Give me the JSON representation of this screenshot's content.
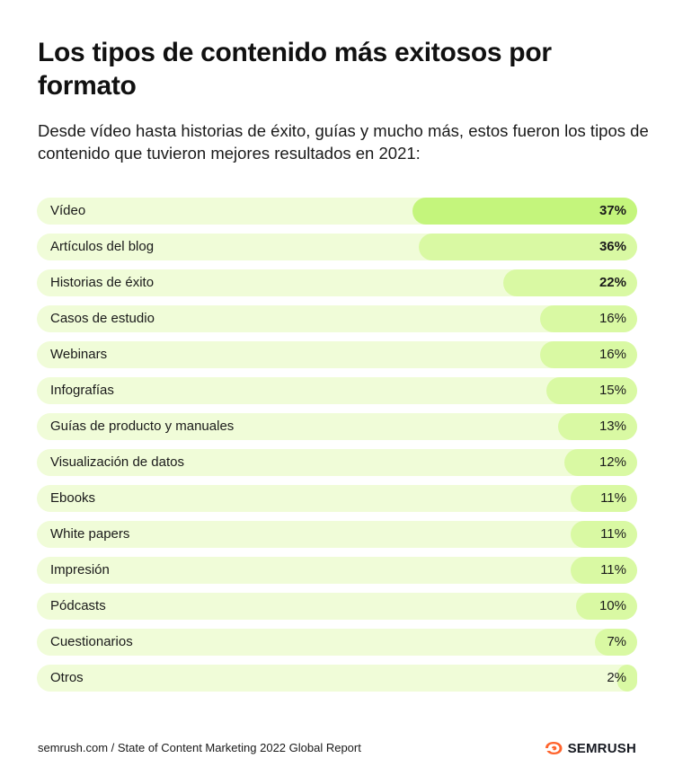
{
  "header": {
    "title": "Los tipos de contenido más exitosos por formato",
    "subtitle": "Desde vídeo hasta historias de éxito, guías y mucho más, estos fueron los tipos de contenido que tuvieron mejores resultados en 2021:"
  },
  "chart_data": {
    "type": "bar",
    "orientation": "horizontal",
    "title": "Los tipos de contenido más exitosos por formato",
    "subtitle": "Desde vídeo hasta historias de éxito, guías y mucho más, estos fueron los tipos de contenido que tuvieron mejores resultados en 2021:",
    "categories": [
      "Vídeo",
      "Artículos del blog",
      "Historias de éxito",
      "Casos de estudio",
      "Webinars",
      "Infografías",
      "Guías de producto y manuales",
      "Visualización de datos",
      "Ebooks",
      "White papers",
      "Impresión",
      "Pódcasts",
      "Cuestionarios",
      "Otros"
    ],
    "values": [
      37,
      36,
      22,
      16,
      16,
      15,
      13,
      12,
      11,
      11,
      11,
      10,
      7,
      2
    ],
    "value_labels": [
      "37%",
      "36%",
      "22%",
      "16%",
      "16%",
      "15%",
      "13%",
      "12%",
      "11%",
      "11%",
      "11%",
      "10%",
      "7%",
      "2%"
    ],
    "unit": "%",
    "xlim": [
      0,
      100
    ],
    "grid": false,
    "legend": "none",
    "colors": {
      "track": "#f0fcd8",
      "top_bar": "#c4f57c",
      "bar": "#d9f9a3"
    }
  },
  "footer": {
    "source": "semrush.com / State of Content Marketing 2022 Global Report",
    "brand": "SEMRUSH",
    "brand_icon": "semrush-flame-icon",
    "brand_color": "#ff642d"
  }
}
